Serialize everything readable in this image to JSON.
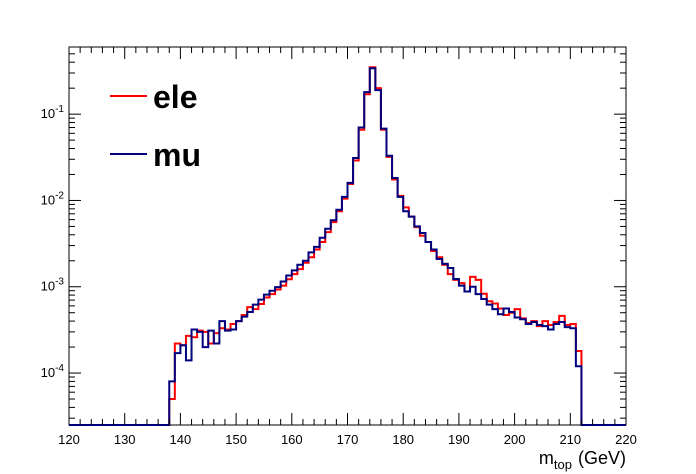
{
  "chart_data": {
    "type": "line",
    "style": "step-histogram",
    "xlabel": "m_top (GeV)",
    "xlabel_main": "m",
    "xlabel_sub": "top",
    "xlabel_unit": "(GeV)",
    "ylabel": "",
    "xlim": [
      120,
      220
    ],
    "ylim": [
      2.5e-05,
      0.6
    ],
    "yscale": "log",
    "grid": false,
    "legend_position": "top-left",
    "x_tick_labels": [
      "120",
      "130",
      "140",
      "150",
      "160",
      "170",
      "180",
      "190",
      "200",
      "210",
      "220"
    ],
    "y_tick_labels": [
      {
        "value": 0.0001,
        "base": "10",
        "exp": "-4"
      },
      {
        "value": 0.001,
        "base": "10",
        "exp": "-3"
      },
      {
        "value": 0.01,
        "base": "10",
        "exp": "-2"
      },
      {
        "value": 0.1,
        "base": "10",
        "exp": "-1"
      }
    ],
    "bin_edges": {
      "start": 120,
      "width": 1
    },
    "series": [
      {
        "name": "ele",
        "color": "#ff0000",
        "values": [
          2.5e-05,
          2.5e-05,
          2.5e-05,
          2.5e-05,
          2.5e-05,
          2.5e-05,
          2.5e-05,
          2.5e-05,
          2.5e-05,
          2.5e-05,
          2.5e-05,
          2.5e-05,
          2.5e-05,
          2.5e-05,
          2.5e-05,
          2.5e-05,
          2.5e-05,
          2.5e-05,
          5e-05,
          0.00022,
          0.00021,
          0.00027,
          0.00026,
          0.00031,
          0.0003,
          0.00022,
          0.00029,
          0.00033,
          0.00032,
          0.00037,
          0.0004,
          0.00047,
          0.00058,
          0.00055,
          0.00063,
          0.00075,
          0.00082,
          0.00093,
          0.00103,
          0.00122,
          0.0014,
          0.0016,
          0.0019,
          0.0022,
          0.0027,
          0.0033,
          0.0043,
          0.0056,
          0.0075,
          0.0105,
          0.0155,
          0.029,
          0.066,
          0.17,
          0.35,
          0.2,
          0.066,
          0.032,
          0.0175,
          0.0113,
          0.0083,
          0.0065,
          0.0049,
          0.0039,
          0.0033,
          0.0026,
          0.0022,
          0.0018,
          0.0014,
          0.0012,
          0.0011,
          0.00088,
          0.0013,
          0.0012,
          0.00083,
          0.00068,
          0.00064,
          0.00056,
          0.00047,
          0.0005,
          0.00055,
          0.00043,
          0.00038,
          0.0004,
          0.00035,
          0.0004,
          0.00036,
          0.00039,
          0.00046,
          0.00036,
          0.00037,
          0.00018,
          2.5e-05,
          2.5e-05,
          2.5e-05,
          2.5e-05,
          2.5e-05,
          2.5e-05,
          2.5e-05,
          2.5e-05
        ]
      },
      {
        "name": "mu",
        "color": "#00007f",
        "values": [
          2.5e-05,
          2.5e-05,
          2.5e-05,
          2.5e-05,
          2.5e-05,
          2.5e-05,
          2.5e-05,
          2.5e-05,
          2.5e-05,
          2.5e-05,
          2.5e-05,
          2.5e-05,
          2.5e-05,
          2.5e-05,
          2.5e-05,
          2.5e-05,
          2.5e-05,
          2.5e-05,
          8e-05,
          0.00017,
          0.00021,
          0.00014,
          0.00032,
          0.0003,
          0.0002,
          0.00031,
          0.00022,
          0.0004,
          0.00031,
          0.00032,
          0.0004,
          0.00045,
          0.00051,
          0.00062,
          0.00071,
          0.00081,
          0.0009,
          0.00099,
          0.00115,
          0.00135,
          0.00155,
          0.0018,
          0.002,
          0.0025,
          0.0029,
          0.0037,
          0.0047,
          0.0059,
          0.0078,
          0.011,
          0.016,
          0.031,
          0.07,
          0.18,
          0.34,
          0.19,
          0.068,
          0.033,
          0.0182,
          0.011,
          0.0075,
          0.0065,
          0.005,
          0.0042,
          0.0033,
          0.0027,
          0.0021,
          0.00185,
          0.00165,
          0.00123,
          0.00103,
          0.00088,
          0.001,
          0.00082,
          0.00072,
          0.00062,
          0.00055,
          0.00048,
          0.00056,
          0.00051,
          0.00044,
          0.00042,
          0.00037,
          0.00039,
          0.00036,
          0.00035,
          0.00032,
          0.00037,
          0.00039,
          0.00034,
          0.00033,
          0.00012,
          2.5e-05,
          2.5e-05,
          2.5e-05,
          2.5e-05,
          2.5e-05,
          2.5e-05,
          2.5e-05,
          2.5e-05
        ]
      }
    ]
  }
}
